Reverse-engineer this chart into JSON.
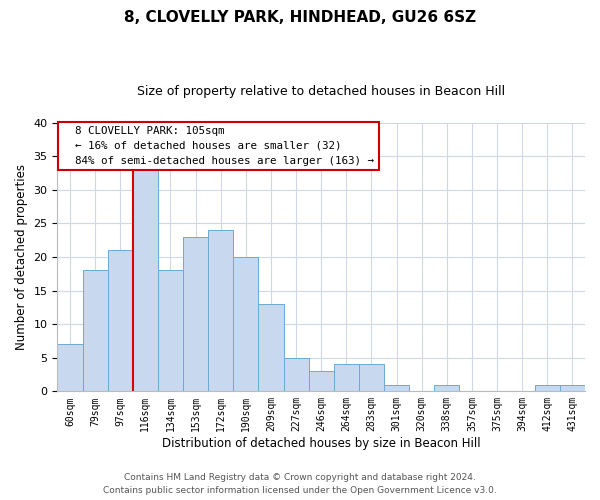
{
  "title": "8, CLOVELLY PARK, HINDHEAD, GU26 6SZ",
  "subtitle": "Size of property relative to detached houses in Beacon Hill",
  "xlabel": "Distribution of detached houses by size in Beacon Hill",
  "ylabel": "Number of detached properties",
  "bar_labels": [
    "60sqm",
    "79sqm",
    "97sqm",
    "116sqm",
    "134sqm",
    "153sqm",
    "172sqm",
    "190sqm",
    "209sqm",
    "227sqm",
    "246sqm",
    "264sqm",
    "283sqm",
    "301sqm",
    "320sqm",
    "338sqm",
    "357sqm",
    "375sqm",
    "394sqm",
    "412sqm",
    "431sqm"
  ],
  "bar_values": [
    7,
    18,
    21,
    33,
    18,
    23,
    24,
    20,
    13,
    5,
    3,
    4,
    4,
    1,
    0,
    1,
    0,
    0,
    0,
    1,
    1
  ],
  "bar_color": "#c8d9ef",
  "bar_edge_color": "#6aaad4",
  "reference_line_color": "#dd0000",
  "annotation_title": "8 CLOVELLY PARK: 105sqm",
  "annotation_line1": "← 16% of detached houses are smaller (32)",
  "annotation_line2": "84% of semi-detached houses are larger (163) →",
  "annotation_box_facecolor": "#ffffff",
  "annotation_box_edgecolor": "#cc0000",
  "ylim": [
    0,
    40
  ],
  "yticks": [
    0,
    5,
    10,
    15,
    20,
    25,
    30,
    35,
    40
  ],
  "footer_line1": "Contains HM Land Registry data © Crown copyright and database right 2024.",
  "footer_line2": "Contains public sector information licensed under the Open Government Licence v3.0.",
  "background_color": "#ffffff",
  "grid_color": "#d0d8e8"
}
